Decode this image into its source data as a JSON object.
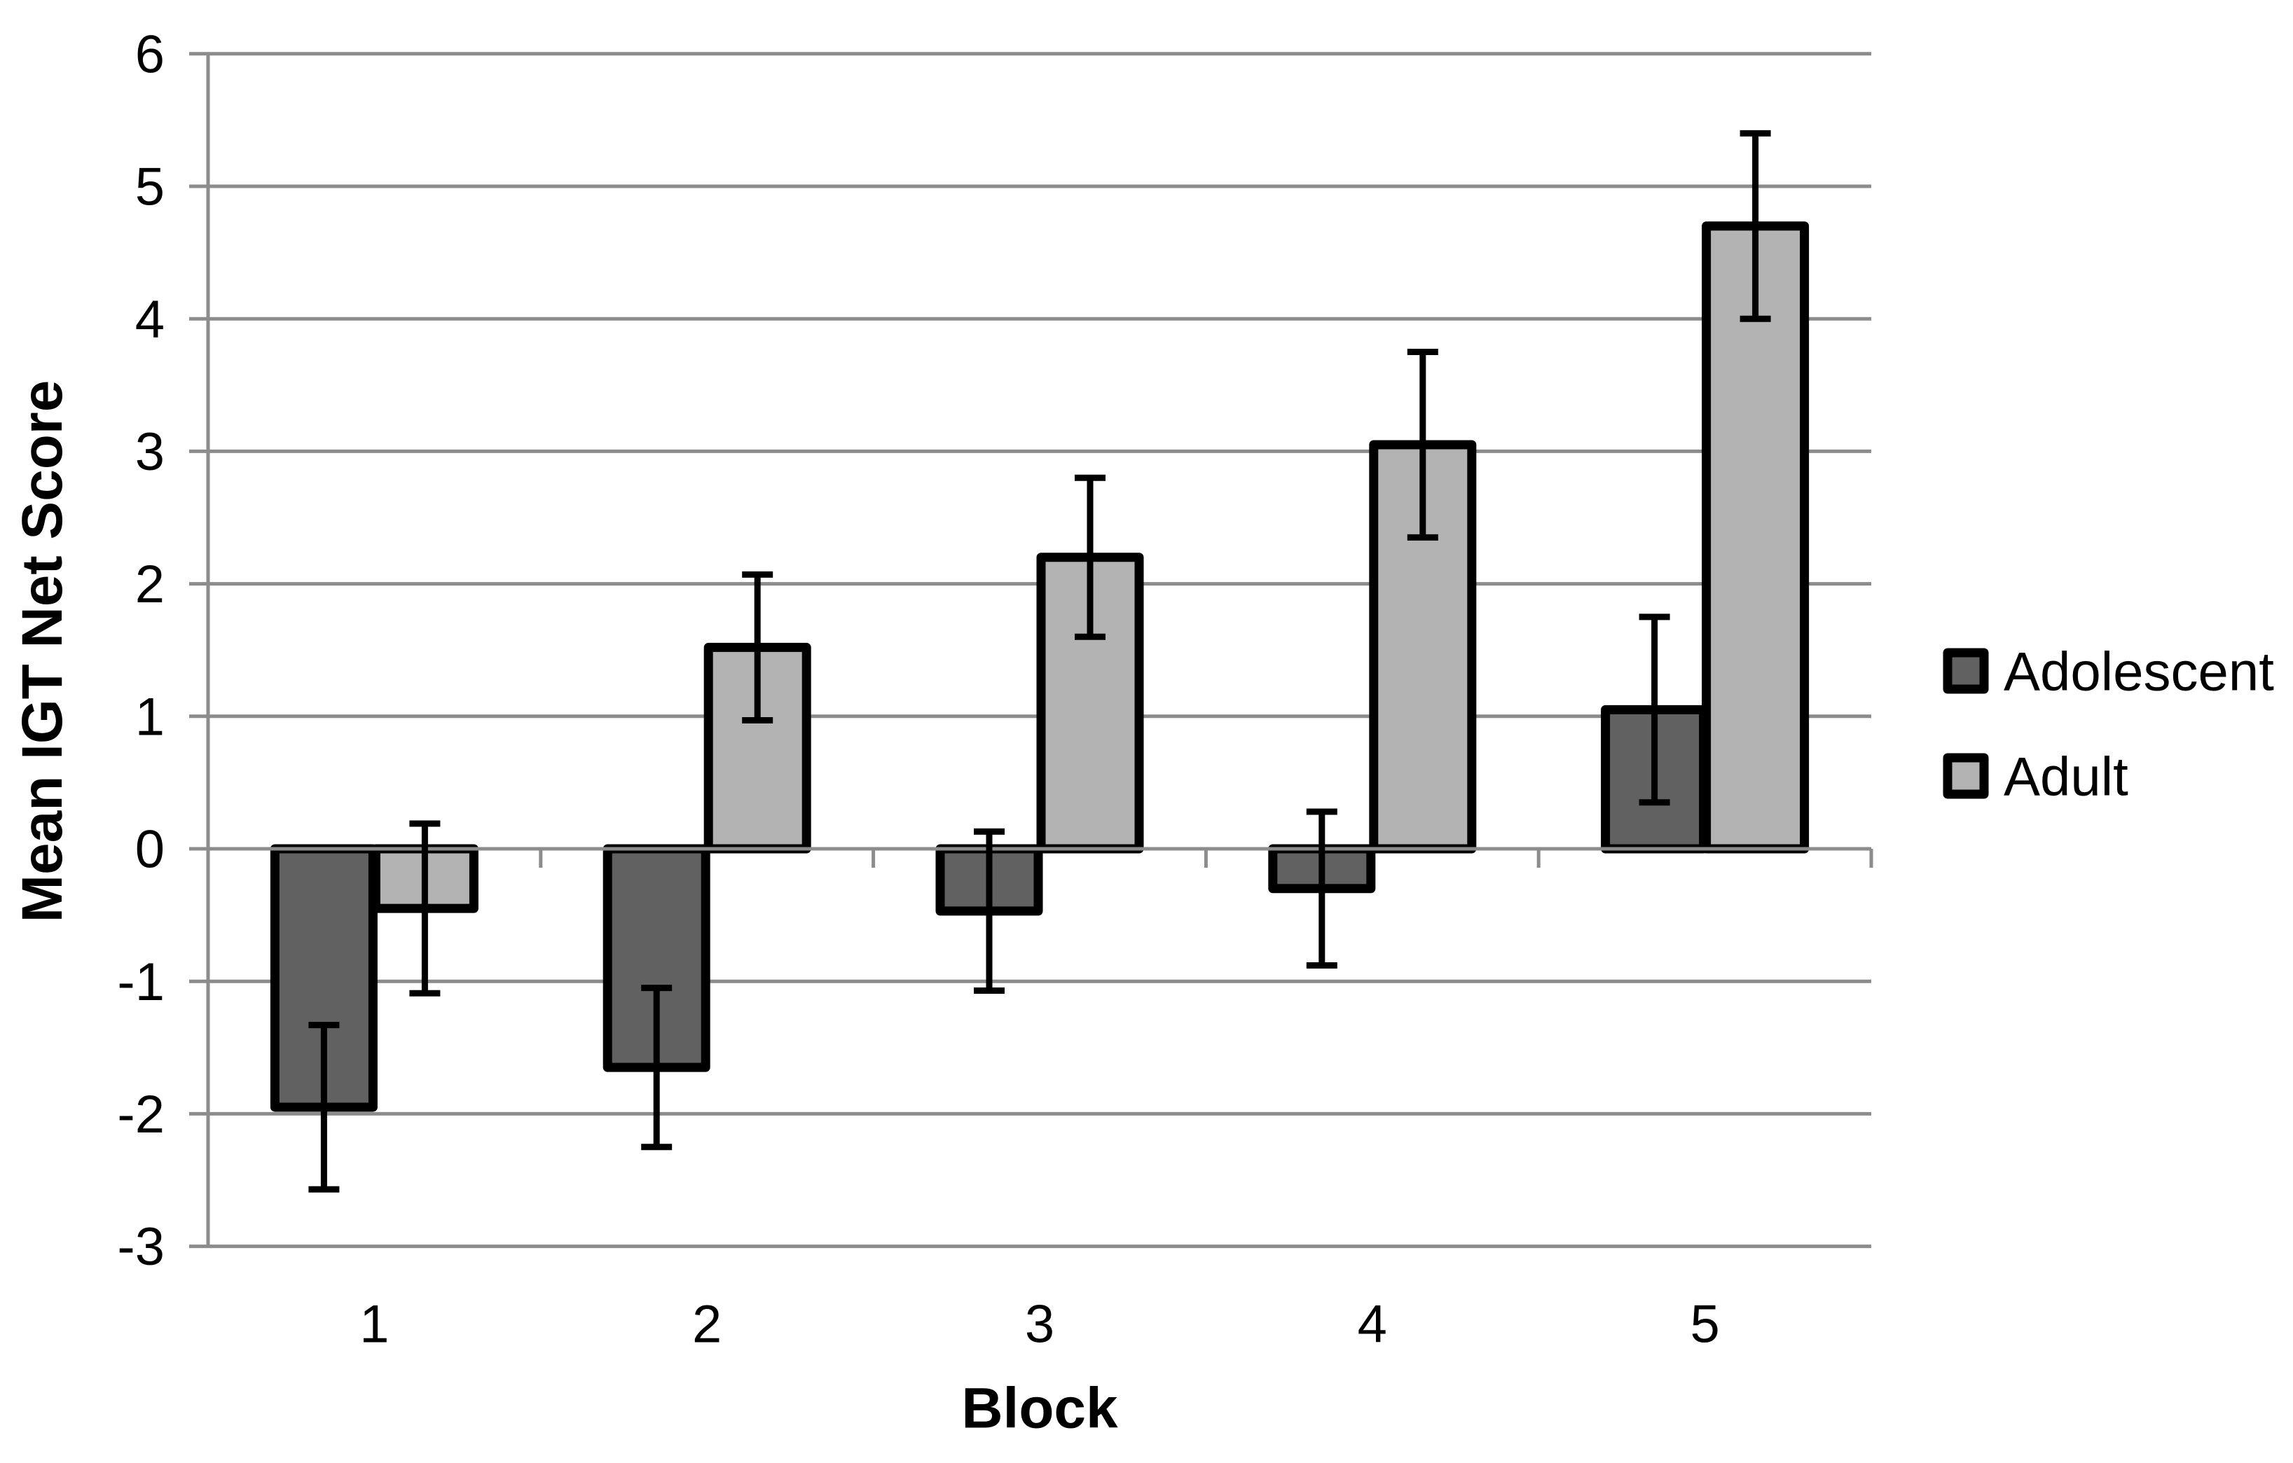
{
  "chart_data": {
    "type": "bar",
    "title": "",
    "categories": [
      "1",
      "2",
      "3",
      "4",
      "5"
    ],
    "xlabel": "Block",
    "ylabel": "Mean IGT Net Score",
    "ylim": [
      -3,
      6
    ],
    "yticks": [
      6,
      5,
      4,
      3,
      2,
      1,
      0,
      -1,
      -2,
      -3
    ],
    "grid": true,
    "legend_position": "right",
    "series": [
      {
        "name": "Adolescent",
        "color": "#616161",
        "values": [
          -1.95,
          -1.65,
          -0.47,
          -0.3,
          1.05
        ],
        "error": [
          0.62,
          0.6,
          0.6,
          0.58,
          0.7
        ]
      },
      {
        "name": "Adult",
        "color": "#b3b3b3",
        "values": [
          -0.45,
          1.52,
          2.2,
          3.05,
          4.7
        ],
        "error": [
          0.64,
          0.55,
          0.6,
          0.7,
          0.7
        ]
      }
    ]
  },
  "colors": {
    "background": "#ffffff",
    "gridline": "#8c8c8c",
    "axis_line": "#8c8c8c",
    "bar_border": "#000000",
    "error_bar": "#000000",
    "text": "#000000"
  }
}
